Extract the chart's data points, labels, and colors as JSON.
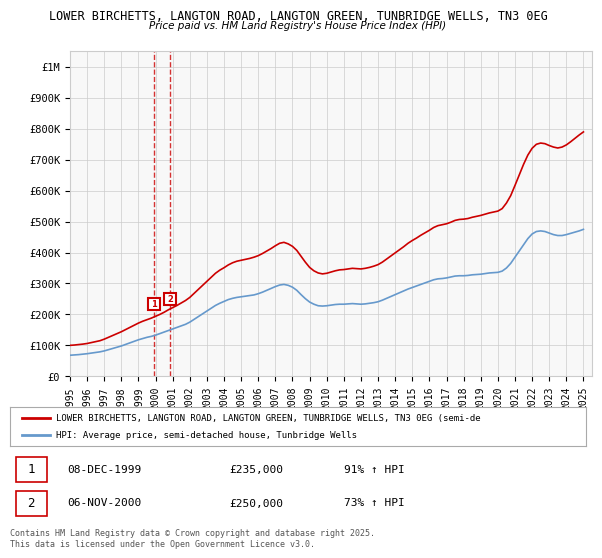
{
  "title": "LOWER BIRCHETTS, LANGTON ROAD, LANGTON GREEN, TUNBRIDGE WELLS, TN3 0EG",
  "subtitle": "Price paid vs. HM Land Registry's House Price Index (HPI)",
  "ylabel_ticks": [
    "£0",
    "£100K",
    "£200K",
    "£300K",
    "£400K",
    "£500K",
    "£600K",
    "£700K",
    "£800K",
    "£900K",
    "£1M"
  ],
  "ytick_vals": [
    0,
    100000,
    200000,
    300000,
    400000,
    500000,
    600000,
    700000,
    800000,
    900000,
    1000000
  ],
  "ylim": [
    0,
    1050000
  ],
  "xlim_start": 1995.0,
  "xlim_end": 2025.5,
  "x_tick_years": [
    1995,
    1996,
    1997,
    1998,
    1999,
    2000,
    2001,
    2002,
    2003,
    2004,
    2005,
    2006,
    2007,
    2008,
    2009,
    2010,
    2011,
    2012,
    2013,
    2014,
    2015,
    2016,
    2017,
    2018,
    2019,
    2020,
    2021,
    2022,
    2023,
    2024,
    2025
  ],
  "sales": [
    {
      "label": "1",
      "date": "08-DEC-1999",
      "price": 235000,
      "x": 1999.93,
      "hpi_pct": "91%",
      "hpi_dir": "↑"
    },
    {
      "label": "2",
      "date": "06-NOV-2000",
      "price": 250000,
      "x": 2000.84,
      "hpi_pct": "73%",
      "hpi_dir": "↑"
    }
  ],
  "red_line_color": "#cc0000",
  "blue_line_color": "#6699cc",
  "sale_marker_color": "#cc0000",
  "dashed_line_color": "#cc0000",
  "legend_label_red": "LOWER BIRCHETTS, LANGTON ROAD, LANGTON GREEN, TUNBRIDGE WELLS, TN3 0EG (semi-de",
  "legend_label_blue": "HPI: Average price, semi-detached house, Tunbridge Wells",
  "footer": "Contains HM Land Registry data © Crown copyright and database right 2025.\nThis data is licensed under the Open Government Licence v3.0.",
  "hpi_data_x": [
    1995.0,
    1995.25,
    1995.5,
    1995.75,
    1996.0,
    1996.25,
    1996.5,
    1996.75,
    1997.0,
    1997.25,
    1997.5,
    1997.75,
    1998.0,
    1998.25,
    1998.5,
    1998.75,
    1999.0,
    1999.25,
    1999.5,
    1999.75,
    2000.0,
    2000.25,
    2000.5,
    2000.75,
    2001.0,
    2001.25,
    2001.5,
    2001.75,
    2002.0,
    2002.25,
    2002.5,
    2002.75,
    2003.0,
    2003.25,
    2003.5,
    2003.75,
    2004.0,
    2004.25,
    2004.5,
    2004.75,
    2005.0,
    2005.25,
    2005.5,
    2005.75,
    2006.0,
    2006.25,
    2006.5,
    2006.75,
    2007.0,
    2007.25,
    2007.5,
    2007.75,
    2008.0,
    2008.25,
    2008.5,
    2008.75,
    2009.0,
    2009.25,
    2009.5,
    2009.75,
    2010.0,
    2010.25,
    2010.5,
    2010.75,
    2011.0,
    2011.25,
    2011.5,
    2011.75,
    2012.0,
    2012.25,
    2012.5,
    2012.75,
    2013.0,
    2013.25,
    2013.5,
    2013.75,
    2014.0,
    2014.25,
    2014.5,
    2014.75,
    2015.0,
    2015.25,
    2015.5,
    2015.75,
    2016.0,
    2016.25,
    2016.5,
    2016.75,
    2017.0,
    2017.25,
    2017.5,
    2017.75,
    2018.0,
    2018.25,
    2018.5,
    2018.75,
    2019.0,
    2019.25,
    2019.5,
    2019.75,
    2020.0,
    2020.25,
    2020.5,
    2020.75,
    2021.0,
    2021.25,
    2021.5,
    2021.75,
    2022.0,
    2022.25,
    2022.5,
    2022.75,
    2023.0,
    2023.25,
    2023.5,
    2023.75,
    2024.0,
    2024.25,
    2024.5,
    2024.75,
    2025.0
  ],
  "hpi_data_y": [
    68000,
    69000,
    70000,
    71500,
    73000,
    75000,
    77000,
    79000,
    82000,
    86000,
    90000,
    94000,
    98000,
    103000,
    108000,
    113000,
    118000,
    122000,
    126000,
    129000,
    133000,
    138000,
    143000,
    148000,
    153000,
    158000,
    163000,
    168000,
    175000,
    184000,
    193000,
    202000,
    211000,
    220000,
    229000,
    236000,
    242000,
    248000,
    252000,
    255000,
    257000,
    259000,
    261000,
    263000,
    267000,
    272000,
    278000,
    284000,
    290000,
    295000,
    297000,
    294000,
    288000,
    278000,
    264000,
    251000,
    240000,
    233000,
    228000,
    227000,
    228000,
    230000,
    232000,
    233000,
    233000,
    234000,
    235000,
    234000,
    233000,
    234000,
    236000,
    238000,
    241000,
    246000,
    252000,
    258000,
    264000,
    270000,
    276000,
    282000,
    287000,
    292000,
    297000,
    302000,
    307000,
    312000,
    315000,
    316000,
    318000,
    321000,
    324000,
    325000,
    325000,
    326000,
    328000,
    329000,
    330000,
    332000,
    334000,
    335000,
    336000,
    340000,
    350000,
    365000,
    385000,
    405000,
    425000,
    445000,
    460000,
    468000,
    470000,
    468000,
    463000,
    458000,
    455000,
    455000,
    458000,
    462000,
    466000,
    470000,
    475000
  ],
  "property_data_x": [
    1995.0,
    1995.25,
    1995.5,
    1995.75,
    1996.0,
    1996.25,
    1996.5,
    1996.75,
    1997.0,
    1997.25,
    1997.5,
    1997.75,
    1998.0,
    1998.25,
    1998.5,
    1998.75,
    1999.0,
    1999.25,
    1999.5,
    1999.75,
    2000.0,
    2000.25,
    2000.5,
    2000.75,
    2001.0,
    2001.25,
    2001.5,
    2001.75,
    2002.0,
    2002.25,
    2002.5,
    2002.75,
    2003.0,
    2003.25,
    2003.5,
    2003.75,
    2004.0,
    2004.25,
    2004.5,
    2004.75,
    2005.0,
    2005.25,
    2005.5,
    2005.75,
    2006.0,
    2006.25,
    2006.5,
    2006.75,
    2007.0,
    2007.25,
    2007.5,
    2007.75,
    2008.0,
    2008.25,
    2008.5,
    2008.75,
    2009.0,
    2009.25,
    2009.5,
    2009.75,
    2010.0,
    2010.25,
    2010.5,
    2010.75,
    2011.0,
    2011.25,
    2011.5,
    2011.75,
    2012.0,
    2012.25,
    2012.5,
    2012.75,
    2013.0,
    2013.25,
    2013.5,
    2013.75,
    2014.0,
    2014.25,
    2014.5,
    2014.75,
    2015.0,
    2015.25,
    2015.5,
    2015.75,
    2016.0,
    2016.25,
    2016.5,
    2016.75,
    2017.0,
    2017.25,
    2017.5,
    2017.75,
    2018.0,
    2018.25,
    2018.5,
    2018.75,
    2019.0,
    2019.25,
    2019.5,
    2019.75,
    2020.0,
    2020.25,
    2020.5,
    2020.75,
    2021.0,
    2021.25,
    2021.5,
    2021.75,
    2022.0,
    2022.25,
    2022.5,
    2022.75,
    2023.0,
    2023.25,
    2023.5,
    2023.75,
    2024.0,
    2024.25,
    2024.5,
    2024.75,
    2025.0
  ],
  "property_data_y": [
    100000,
    101000,
    102500,
    104000,
    106000,
    109000,
    112000,
    115000,
    120000,
    126000,
    132000,
    138000,
    144000,
    151000,
    158000,
    165000,
    172000,
    178000,
    183000,
    188000,
    194000,
    200000,
    207000,
    215000,
    222000,
    229000,
    237000,
    245000,
    255000,
    268000,
    281000,
    294000,
    307000,
    320000,
    333000,
    343000,
    351000,
    360000,
    367000,
    372000,
    375000,
    378000,
    381000,
    385000,
    390000,
    397000,
    405000,
    413000,
    422000,
    430000,
    433000,
    428000,
    420000,
    407000,
    388000,
    369000,
    352000,
    341000,
    334000,
    331000,
    333000,
    337000,
    341000,
    344000,
    345000,
    347000,
    349000,
    348000,
    347000,
    349000,
    352000,
    356000,
    361000,
    369000,
    379000,
    389000,
    399000,
    409000,
    419000,
    430000,
    439000,
    447000,
    456000,
    464000,
    472000,
    481000,
    487000,
    490000,
    493000,
    498000,
    504000,
    507000,
    508000,
    510000,
    514000,
    517000,
    520000,
    524000,
    528000,
    531000,
    534000,
    542000,
    560000,
    584000,
    617000,
    651000,
    685000,
    715000,
    737000,
    750000,
    754000,
    752000,
    746000,
    741000,
    738000,
    741000,
    748000,
    758000,
    769000,
    780000,
    790000
  ],
  "bg_color": "#ffffff",
  "grid_color": "#cccccc",
  "plot_bg_color": "#f8f8f8"
}
